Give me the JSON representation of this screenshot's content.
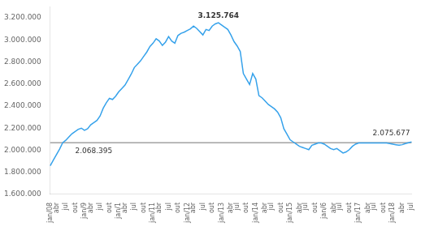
{
  "chart_data": {
    "type": "line",
    "categories": [
      "jan/08",
      null,
      "abr",
      null,
      null,
      "jul",
      null,
      null,
      "out",
      null,
      null,
      "jan/9",
      null,
      "abr",
      null,
      null,
      "jul",
      null,
      null,
      "out",
      null,
      null,
      "jan/1",
      null,
      "abr",
      null,
      null,
      "jul",
      null,
      null,
      "out",
      null,
      null,
      "jan/11",
      null,
      "abr",
      null,
      null,
      "jul",
      null,
      null,
      "out",
      null,
      null,
      "jan/12",
      null,
      "abr",
      null,
      null,
      "jul",
      null,
      null,
      "out",
      null,
      null,
      "jan/13",
      null,
      null,
      "abr",
      null,
      "jul",
      null,
      null,
      "out",
      null,
      null,
      "jan/14",
      null,
      null,
      "abr",
      null,
      "jul",
      null,
      null,
      "out",
      null,
      null,
      "jan/15",
      null,
      null,
      "abr",
      null,
      "jul",
      null,
      null,
      "out",
      null,
      null,
      "jan/6",
      null,
      null,
      "abr",
      null,
      "jul",
      null,
      null,
      "out",
      null,
      null,
      "jan/17",
      null,
      null,
      "abr",
      null,
      "jul",
      null,
      null,
      "out",
      null,
      null,
      "jan/18",
      null,
      null,
      "abr",
      null,
      null,
      "jul"
    ],
    "values": [
      1860000,
      1910000,
      1960000,
      2010000,
      2068395,
      2090000,
      2120000,
      2150000,
      2170000,
      2190000,
      2200000,
      2180000,
      2195000,
      2230000,
      2250000,
      2270000,
      2310000,
      2380000,
      2430000,
      2470000,
      2460000,
      2490000,
      2530000,
      2560000,
      2590000,
      2640000,
      2690000,
      2750000,
      2780000,
      2810000,
      2850000,
      2890000,
      2940000,
      2970000,
      3010000,
      2990000,
      2950000,
      2980000,
      3030000,
      2990000,
      2970000,
      3040000,
      3060000,
      3070000,
      3085000,
      3100000,
      3125764,
      3105000,
      3075000,
      3045000,
      3095000,
      3085000,
      3125000,
      3145000,
      3155000,
      3135000,
      3115000,
      3095000,
      3045000,
      2985000,
      2945000,
      2895000,
      2695000,
      2645000,
      2595000,
      2695000,
      2645000,
      2495000,
      2475000,
      2445000,
      2415000,
      2395000,
      2375000,
      2345000,
      2295000,
      2195000,
      2145000,
      2095000,
      2075000,
      2055000,
      2035000,
      2025000,
      2015000,
      2005000,
      2045000,
      2055000,
      2065000,
      2065000,
      2055000,
      2035000,
      2015000,
      2005000,
      2015000,
      1995000,
      1975000,
      1985000,
      2005000,
      2035000,
      2055000,
      2065000,
      2065000,
      2065000,
      2065000,
      2065000,
      2065000,
      2065000,
      2065000,
      2065000,
      2065000,
      2060000,
      2055000,
      2050000,
      2045000,
      2050000,
      2060000,
      2068000,
      2075677
    ],
    "ylim": [
      1600000,
      3300000
    ],
    "yticks": [
      {
        "value": 1600000,
        "label": "1.600.000"
      },
      {
        "value": 1800000,
        "label": "1.800.000"
      },
      {
        "value": 2000000,
        "label": "2.000.000"
      },
      {
        "value": 2200000,
        "label": "2.200.000"
      },
      {
        "value": 2400000,
        "label": "2.400.000"
      },
      {
        "value": 2600000,
        "label": "2.600.000"
      },
      {
        "value": 2800000,
        "label": "2.800.000"
      },
      {
        "value": 3000000,
        "label": "3.000.000"
      },
      {
        "value": 3200000,
        "label": "3.200.000"
      }
    ],
    "reference_line": 2068395,
    "annotations": [
      "3.125.764",
      "2.068.395",
      "2.075.677"
    ],
    "grid": false
  }
}
